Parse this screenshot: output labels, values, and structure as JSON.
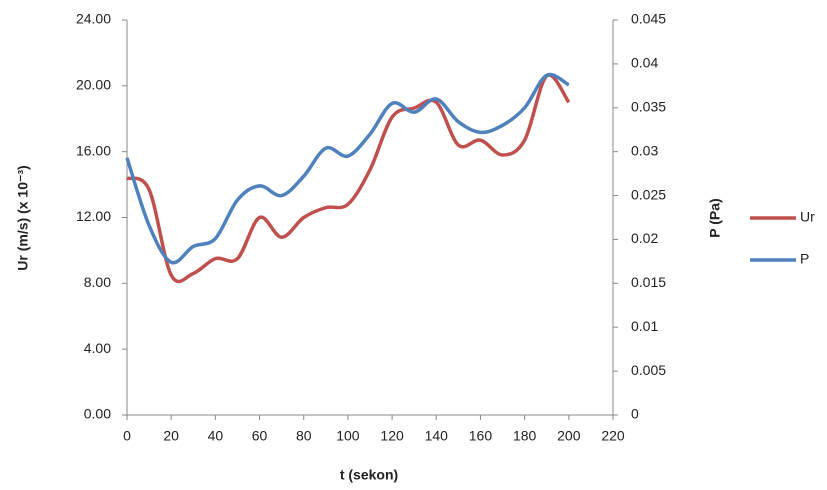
{
  "chart_data": {
    "type": "line",
    "x_label": "t (sekon)",
    "y_label": "Ur (m/s) (x 10⁻³)",
    "y2_label": "P (Pa)",
    "x": [
      0,
      10,
      20,
      30,
      40,
      50,
      60,
      70,
      80,
      90,
      100,
      110,
      120,
      130,
      140,
      150,
      160,
      170,
      180,
      190,
      200
    ],
    "series": [
      {
        "name": "Ur",
        "color": "#c0504d",
        "values": [
          14.4,
          13.7,
          8.5,
          8.6,
          9.5,
          9.5,
          12.0,
          10.8,
          12.0,
          12.6,
          12.8,
          14.9,
          18.1,
          18.65,
          19.0,
          16.4,
          16.7,
          15.8,
          16.7,
          20.6,
          19.0
        ]
      },
      {
        "name": "P",
        "color": "#4f81bd",
        "axis": "y2",
        "values": [
          0.0293,
          0.0216,
          0.0174,
          0.0192,
          0.0201,
          0.0245,
          0.0261,
          0.025,
          0.0272,
          0.0304,
          0.0295,
          0.032,
          0.0355,
          0.0345,
          0.036,
          0.0334,
          0.0322,
          0.033,
          0.035,
          0.0387,
          0.0376
        ]
      }
    ],
    "xlim": [
      0,
      220
    ],
    "xticks": [
      0,
      20,
      40,
      60,
      80,
      100,
      120,
      140,
      160,
      180,
      200,
      220
    ],
    "ylim": [
      0,
      24
    ],
    "yticks": [
      {
        "value": 0,
        "label": "0.00"
      },
      {
        "value": 4,
        "label": "4.00"
      },
      {
        "value": 8,
        "label": "8.00"
      },
      {
        "value": 12,
        "label": "12.00"
      },
      {
        "value": 16,
        "label": "16.00"
      },
      {
        "value": 20,
        "label": "20.00"
      },
      {
        "value": 24,
        "label": "24.00"
      }
    ],
    "y2lim": [
      0,
      0.045
    ],
    "y2ticks": [
      0,
      0.005,
      0.01,
      0.015,
      0.02,
      0.025,
      0.03,
      0.035,
      0.04,
      0.045
    ],
    "grid": false,
    "legend": "right"
  }
}
